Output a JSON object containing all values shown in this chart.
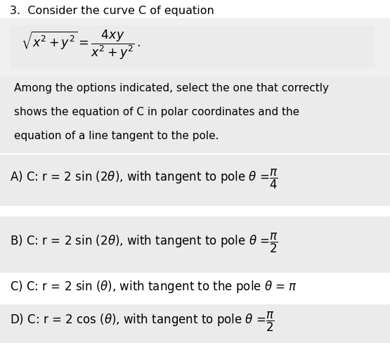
{
  "title": "3.  Consider the curve C of equation",
  "equation": "$\\sqrt{x^2 + y^2} = \\dfrac{4xy}{x^2 + y^2}\\,.$",
  "instr_lines": [
    "Among the options indicated, select the one that correctly",
    "shows the equation of C in polar coordinates and the",
    "equation of a line tangent to the pole."
  ],
  "optA": "A) C: r = 2 sin (2$\\theta$), with tangent to pole $\\theta$ =$\\dfrac{\\pi}{4}$",
  "optB": "B) C: r = 2 sin (2$\\theta$), with tangent to pole $\\theta$ =$\\dfrac{\\pi}{2}$",
  "optC": "C) C: r = 2 sin ($\\theta$), with tangent to the pole $\\theta$ = $\\pi$",
  "optD": "D) C: r = 2 cos ($\\theta$), with tangent to pole $\\theta$ =$\\dfrac{\\pi}{2}$",
  "bg_color": "#ffffff",
  "panel_color": "#f0f0f0",
  "text_color": "#000000",
  "math_color": "#7a6030",
  "fs_title": 11.5,
  "fs_eq": 12.5,
  "fs_instr": 11,
  "fs_opt": 12
}
